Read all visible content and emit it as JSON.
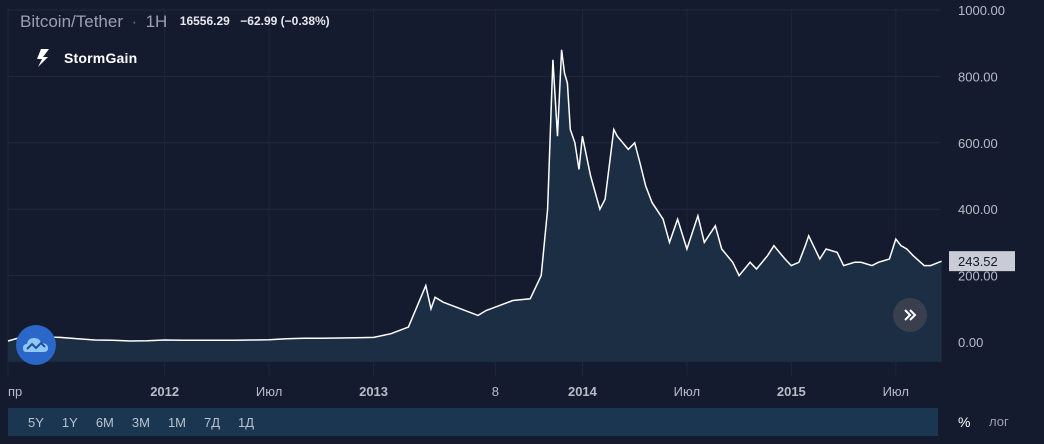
{
  "header": {
    "symbol": "Bitcoin/Tether",
    "timeframe": "1H",
    "last_price": "16556.29",
    "change": "−62.99 (−0.38%)"
  },
  "brand": {
    "name": "StormGain",
    "icon": "lightning-logo-icon"
  },
  "colors": {
    "background": "#151b2e",
    "line": "#ffffff",
    "area": "#1b2e44",
    "axis_text": "#b6bcc8",
    "price_label_bg": "#c9ccd4"
  },
  "chart_data": {
    "type": "area",
    "x_tick_labels": [
      "пр",
      "2012",
      "Июл",
      "2013",
      "8",
      "2014",
      "Июл",
      "2015",
      "Июл"
    ],
    "bold_x_ticks": [
      "2012",
      "2013",
      "2014",
      "2015"
    ],
    "y_ticks": [
      "1000.00",
      "800.00",
      "600.00",
      "400.00",
      "200.00",
      "0.00"
    ],
    "y_tick_values": [
      1000,
      800,
      600,
      400,
      200,
      0
    ],
    "ylim": [
      -60,
      1010
    ],
    "last_value": 243.52,
    "last_value_label": "243.52",
    "grid": true,
    "series": [
      {
        "x": [
          "2011-04",
          "2011-05",
          "2011-06",
          "2011-07",
          "2011-08",
          "2011-09",
          "2011-10",
          "2011-11",
          "2011-12",
          "2012-01",
          "2012-02",
          "2012-03",
          "2012-04",
          "2012-05",
          "2012-06",
          "2012-07",
          "2012-08",
          "2012-09",
          "2012-10",
          "2012-11",
          "2012-12",
          "2013-01",
          "2013-02",
          "2013-03",
          "2013-04-01",
          "2013-04-10",
          "2013-04-17",
          "2013-05",
          "2013-06",
          "2013-07",
          "2013-07-15",
          "2013-08",
          "2013-09",
          "2013-10",
          "2013-10-20",
          "2013-11-01",
          "2013-11-10",
          "2013-11-18",
          "2013-11-25",
          "2013-11-30",
          "2013-12-05",
          "2013-12-10",
          "2013-12-18",
          "2013-12-25",
          "2014-01",
          "2014-01-15",
          "2014-02-01",
          "2014-02-10",
          "2014-02-25",
          "2014-03",
          "2014-03-20",
          "2014-04",
          "2014-04-10",
          "2014-04-20",
          "2014-05",
          "2014-05-20",
          "2014-06",
          "2014-06-15",
          "2014-07",
          "2014-07-20",
          "2014-08",
          "2014-08-20",
          "2014-09",
          "2014-09-20",
          "2014-10",
          "2014-10-20",
          "2014-11",
          "2014-11-20",
          "2014-12",
          "2014-12-20",
          "2015-01",
          "2015-01-14",
          "2015-01-25",
          "2015-02",
          "2015-02-20",
          "2015-03",
          "2015-03-20",
          "2015-04",
          "2015-04-20",
          "2015-05",
          "2015-05-20",
          "2015-06",
          "2015-06-20",
          "2015-07",
          "2015-07-10",
          "2015-07-20",
          "2015-08",
          "2015-08-20",
          "2015-09",
          "2015-09-20"
        ],
        "values": [
          3,
          18,
          15,
          14,
          10,
          6,
          5,
          3,
          4,
          6,
          5,
          5,
          5,
          5,
          6,
          7,
          10,
          11,
          11,
          12,
          13,
          14,
          25,
          45,
          170,
          100,
          135,
          120,
          100,
          80,
          95,
          105,
          125,
          130,
          200,
          400,
          850,
          620,
          880,
          810,
          780,
          640,
          600,
          520,
          620,
          500,
          400,
          430,
          640,
          620,
          580,
          600,
          540,
          470,
          420,
          370,
          300,
          370,
          280,
          380,
          300,
          350,
          280,
          240,
          200,
          240,
          220,
          260,
          290,
          250,
          230,
          240,
          290,
          320,
          250,
          280,
          270,
          230,
          240,
          240,
          230,
          240,
          250,
          310,
          290,
          280,
          260,
          230,
          230,
          243.52
        ]
      }
    ]
  },
  "range_buttons": [
    "5Y",
    "1Y",
    "6M",
    "3M",
    "1M",
    "7Д",
    "1Д"
  ],
  "scale_options": {
    "percent": "%",
    "log": "лог"
  }
}
